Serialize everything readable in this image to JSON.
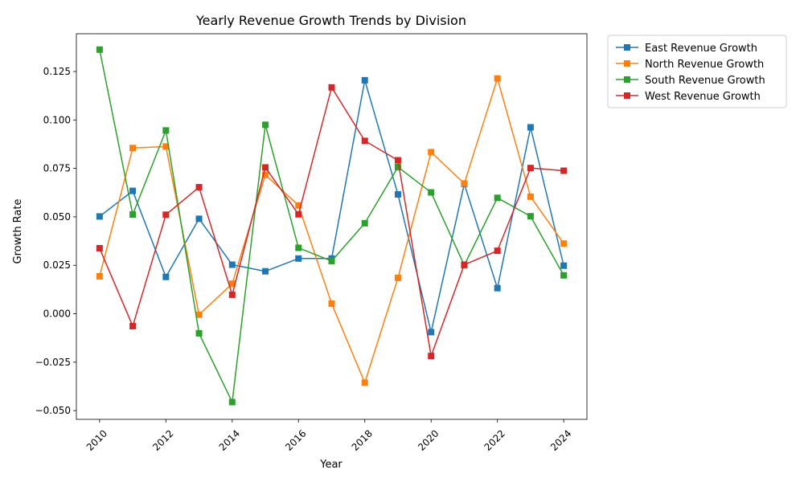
{
  "chart_data": {
    "type": "line",
    "title": "Yearly Revenue Growth Trends by Division",
    "xlabel": "Year",
    "ylabel": "Growth Rate",
    "x": [
      2010,
      2011,
      2012,
      2013,
      2014,
      2015,
      2016,
      2017,
      2018,
      2019,
      2020,
      2021,
      2022,
      2023,
      2024
    ],
    "xlim": [
      2009.3,
      2024.7
    ],
    "ylim": [
      -0.0545,
      0.1445
    ],
    "x_ticks": [
      2010,
      2012,
      2014,
      2016,
      2018,
      2020,
      2022,
      2024
    ],
    "y_ticks": [
      -0.05,
      -0.025,
      0.0,
      0.025,
      0.05,
      0.075,
      0.1,
      0.125
    ],
    "y_tick_labels": [
      "−0.050",
      "−0.025",
      "0.000",
      "0.025",
      "0.050",
      "0.075",
      "0.100",
      "0.125"
    ],
    "grid": false,
    "legend_placement": "outside-top-right",
    "marker": "square",
    "series": [
      {
        "name": "East Revenue Growth",
        "color": "#1f77b4",
        "values": [
          0.0502,
          0.0634,
          0.019,
          0.049,
          0.0253,
          0.0219,
          0.0285,
          0.0285,
          0.1205,
          0.0616,
          -0.0095,
          0.067,
          0.0132,
          0.0962,
          0.0248
        ]
      },
      {
        "name": "North Revenue Growth",
        "color": "#ff7f0e",
        "values": [
          0.0193,
          0.0855,
          0.0863,
          -0.0005,
          0.0155,
          0.0717,
          0.0559,
          0.0052,
          -0.0356,
          0.0185,
          0.0834,
          0.0672,
          0.1214,
          0.0604,
          0.0362
        ]
      },
      {
        "name": "South Revenue Growth",
        "color": "#2ca02c",
        "values": [
          0.1363,
          0.0512,
          0.0946,
          -0.0101,
          -0.0456,
          0.0975,
          0.034,
          0.0272,
          0.0467,
          0.0757,
          0.0626,
          0.025,
          0.0598,
          0.0503,
          0.0198
        ]
      },
      {
        "name": "West Revenue Growth",
        "color": "#d62728",
        "values": [
          0.0338,
          -0.0064,
          0.0511,
          0.0653,
          0.0098,
          0.0755,
          0.0513,
          0.1168,
          0.0892,
          0.0792,
          -0.0218,
          0.0253,
          0.0325,
          0.0752,
          0.0738
        ]
      }
    ]
  }
}
